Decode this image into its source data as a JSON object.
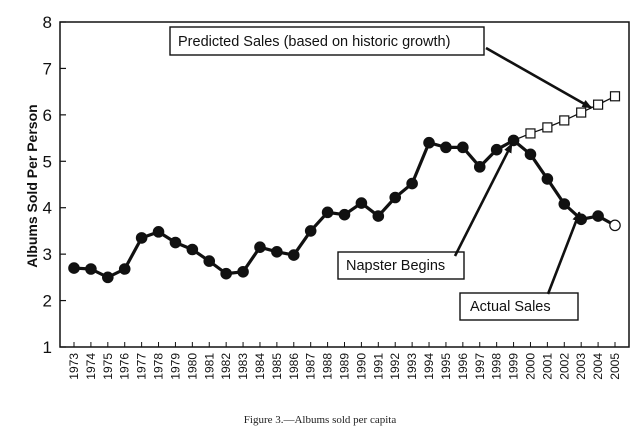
{
  "chart_data": {
    "type": "line",
    "ylabel": "Albums Sold Per Person",
    "xlabel": "",
    "ylim": [
      1,
      8
    ],
    "yticks": [
      1,
      2,
      3,
      4,
      5,
      6,
      7,
      8
    ],
    "grid": false,
    "x": [
      1973,
      1974,
      1975,
      1976,
      1977,
      1978,
      1979,
      1980,
      1981,
      1982,
      1983,
      1984,
      1985,
      1986,
      1987,
      1988,
      1989,
      1990,
      1991,
      1992,
      1993,
      1994,
      1995,
      1996,
      1997,
      1998,
      1999,
      2000,
      2001,
      2002,
      2003,
      2004,
      2005
    ],
    "series": [
      {
        "name": "Actual Sales",
        "marker": "filled-circle",
        "x": [
          1973,
          1974,
          1975,
          1976,
          1977,
          1978,
          1979,
          1980,
          1981,
          1982,
          1983,
          1984,
          1985,
          1986,
          1987,
          1988,
          1989,
          1990,
          1991,
          1992,
          1993,
          1994,
          1995,
          1996,
          1997,
          1998,
          1999,
          2000,
          2001,
          2002,
          2003,
          2004,
          2005
        ],
        "values": [
          2.7,
          2.68,
          2.5,
          2.68,
          3.35,
          3.48,
          3.25,
          3.1,
          2.85,
          2.58,
          2.62,
          3.15,
          3.05,
          2.98,
          3.5,
          3.9,
          3.85,
          4.1,
          3.82,
          4.22,
          4.52,
          5.4,
          5.3,
          5.3,
          4.88,
          5.25,
          5.45,
          5.15,
          4.62,
          4.08,
          3.75,
          3.82,
          3.62
        ],
        "open_last_point": true
      },
      {
        "name": "Predicted Sales (based on historic growth)",
        "marker": "open-square",
        "x": [
          1999,
          2000,
          2001,
          2002,
          2003,
          2004,
          2005
        ],
        "values": [
          5.45,
          5.6,
          5.73,
          5.88,
          6.05,
          6.22,
          6.4
        ]
      }
    ],
    "annotations": [
      {
        "text": "Predicted Sales (based on historic growth)",
        "points_to": {
          "x": 2003.6,
          "y": 6.15
        }
      },
      {
        "text": "Napster Begins",
        "points_to": {
          "x": 1998.9,
          "y": 5.38
        }
      },
      {
        "text": "Actual Sales",
        "points_to": {
          "x": 2002.9,
          "y": 3.9
        }
      }
    ],
    "caption": "Figure 3.—Albums sold per capita"
  }
}
